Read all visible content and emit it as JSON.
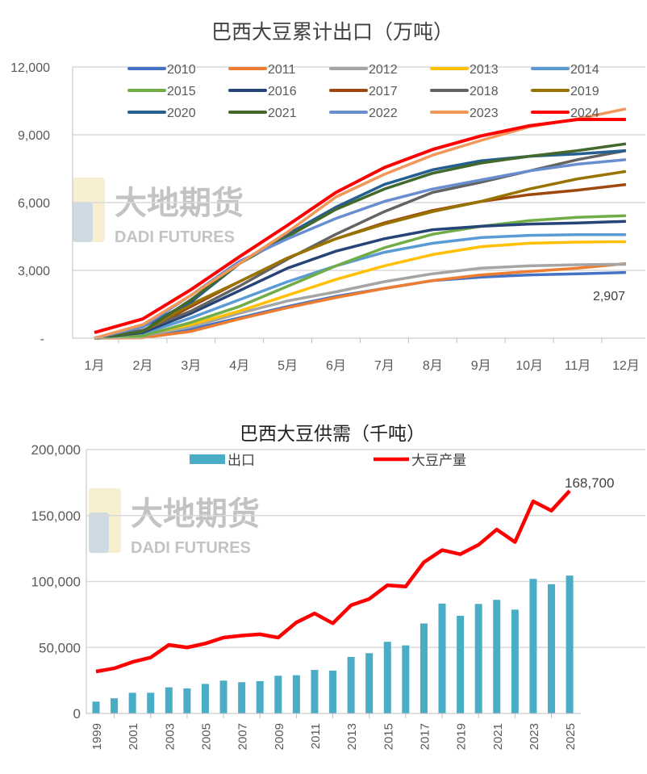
{
  "watermark": {
    "cn": "大地期货",
    "en": "DADI FUTURES"
  },
  "chart_data": [
    {
      "type": "line",
      "title": "巴西大豆累计出口（万吨）",
      "categories": [
        "1月",
        "2月",
        "3月",
        "4月",
        "5月",
        "6月",
        "7月",
        "8月",
        "9月",
        "10月",
        "11月",
        "12月"
      ],
      "ylim": [
        0,
        12000
      ],
      "yticks": [
        "-",
        "3,000",
        "6,000",
        "9,000",
        "12,000"
      ],
      "grid": true,
      "legend": "top",
      "annotation": "2,907",
      "series": [
        {
          "name": "2010",
          "color": "#4472C4",
          "values": [
            0,
            50,
            400,
            900,
            1400,
            1850,
            2200,
            2550,
            2700,
            2800,
            2850,
            2907
          ]
        },
        {
          "name": "2011",
          "color": "#ED7D31",
          "values": [
            0,
            20,
            300,
            850,
            1350,
            1800,
            2200,
            2550,
            2800,
            2950,
            3100,
            3300
          ]
        },
        {
          "name": "2012",
          "color": "#A5A5A5",
          "values": [
            0,
            100,
            500,
            1100,
            1650,
            2050,
            2500,
            2850,
            3100,
            3200,
            3250,
            3270
          ]
        },
        {
          "name": "2013",
          "color": "#FFC000",
          "values": [
            0,
            150,
            600,
            1200,
            1900,
            2600,
            3200,
            3700,
            4050,
            4200,
            4250,
            4270
          ]
        },
        {
          "name": "2014",
          "color": "#5B9BD5",
          "values": [
            0,
            200,
            900,
            1700,
            2500,
            3200,
            3800,
            4200,
            4450,
            4550,
            4580,
            4580
          ]
        },
        {
          "name": "2015",
          "color": "#70AD47",
          "values": [
            0,
            100,
            700,
            1400,
            2300,
            3200,
            4000,
            4600,
            4950,
            5200,
            5350,
            5420
          ]
        },
        {
          "name": "2016",
          "color": "#264478",
          "values": [
            0,
            250,
            1100,
            2100,
            3100,
            3850,
            4400,
            4800,
            4950,
            5050,
            5100,
            5170
          ]
        },
        {
          "name": "2017",
          "color": "#9E480E",
          "values": [
            0,
            300,
            1400,
            2500,
            3550,
            4400,
            5100,
            5650,
            6050,
            6350,
            6550,
            6800
          ]
        },
        {
          "name": "2018",
          "color": "#636363",
          "values": [
            0,
            350,
            1200,
            2300,
            3500,
            4600,
            5600,
            6450,
            6900,
            7400,
            7900,
            8300
          ]
        },
        {
          "name": "2019",
          "color": "#997300",
          "values": [
            0,
            300,
            1500,
            2500,
            3550,
            4400,
            5050,
            5600,
            6050,
            6600,
            7050,
            7380
          ]
        },
        {
          "name": "2020",
          "color": "#255E91",
          "values": [
            0,
            500,
            1600,
            3300,
            4600,
            5800,
            6800,
            7450,
            7850,
            8050,
            8150,
            8300
          ]
        },
        {
          "name": "2021",
          "color": "#43682B",
          "values": [
            0,
            300,
            1700,
            3300,
            4500,
            5700,
            6600,
            7300,
            7750,
            8050,
            8300,
            8600
          ]
        },
        {
          "name": "2022",
          "color": "#698ED0",
          "values": [
            0,
            500,
            1900,
            3400,
            4400,
            5300,
            6050,
            6600,
            7000,
            7400,
            7700,
            7900
          ]
        },
        {
          "name": "2023",
          "color": "#F1975A",
          "values": [
            0,
            600,
            1900,
            3300,
            4700,
            6250,
            7250,
            8100,
            8750,
            9350,
            9700,
            10150
          ]
        },
        {
          "name": "2024",
          "color": "#FF0000",
          "values": [
            250,
            850,
            2150,
            3600,
            5000,
            6450,
            7550,
            8350,
            8950,
            9400,
            9680,
            9680
          ]
        }
      ]
    },
    {
      "type": "bar+line",
      "title": "巴西大豆供需（千吨）",
      "categories": [
        "1999",
        "2000",
        "2001",
        "2002",
        "2003",
        "2004",
        "2005",
        "2006",
        "2007",
        "2008",
        "2009",
        "2010",
        "2011",
        "2012",
        "2013",
        "2014",
        "2015",
        "2016",
        "2017",
        "2018",
        "2019",
        "2020",
        "2021",
        "2022",
        "2023",
        "2024",
        "2025"
      ],
      "xtick_labels": [
        "1999",
        "2001",
        "2003",
        "2005",
        "2007",
        "2009",
        "2011",
        "2013",
        "2015",
        "2017",
        "2019",
        "2021",
        "2023",
        "2025"
      ],
      "ylim": [
        0,
        200000
      ],
      "yticks": [
        "0",
        "50,000",
        "100,000",
        "150,000",
        "200,000"
      ],
      "grid": true,
      "legend": "top",
      "annotation": "168,700",
      "series": [
        {
          "name": "出口",
          "type": "bar",
          "color": "#4BACC6",
          "values": [
            9000,
            11500,
            15700,
            15700,
            19800,
            19000,
            22400,
            24900,
            23700,
            24500,
            28600,
            29000,
            33000,
            32500,
            42800,
            45700,
            54300,
            51600,
            68200,
            83300,
            74000,
            83000,
            86100,
            78700,
            102000,
            98000,
            104500
          ]
        },
        {
          "name": "大豆产量",
          "type": "line",
          "color": "#FF0000",
          "values": [
            31800,
            34200,
            39000,
            42400,
            52000,
            50000,
            53000,
            57500,
            59000,
            60000,
            57500,
            69000,
            75800,
            68300,
            82000,
            86800,
            97200,
            96200,
            114600,
            123800,
            120700,
            127800,
            139400,
            129900,
            160800,
            153700,
            168700
          ]
        }
      ]
    }
  ]
}
